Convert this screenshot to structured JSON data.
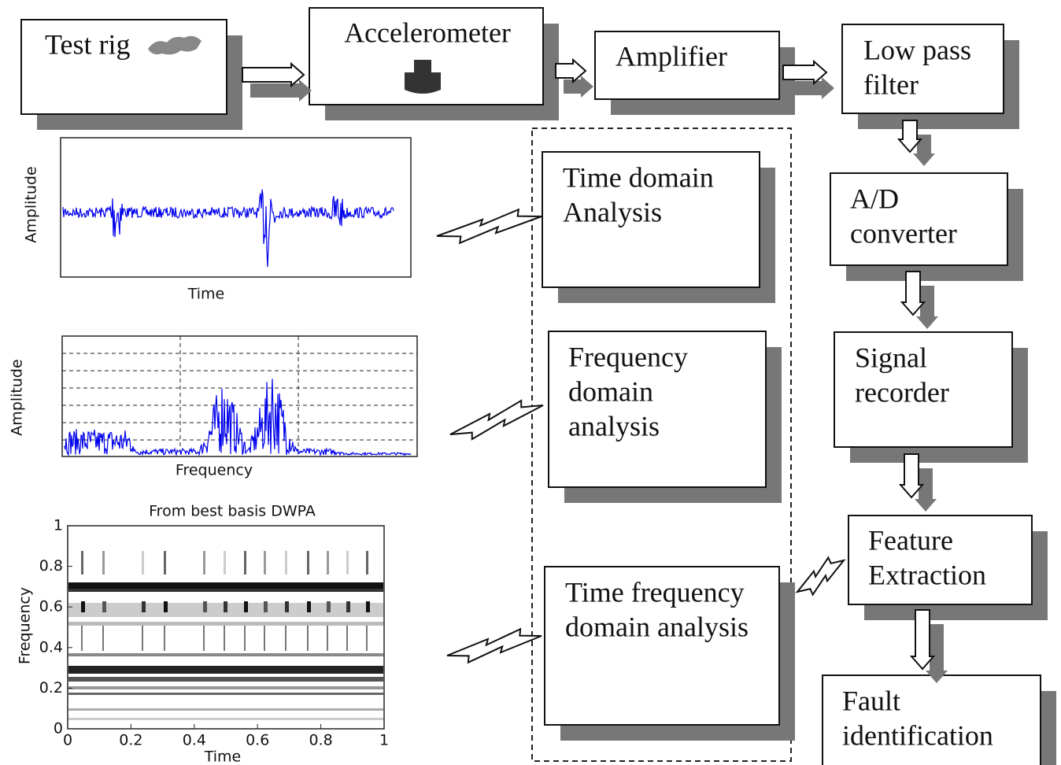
{
  "flow": [
    {
      "lines": [
        "Test rig"
      ]
    },
    {
      "lines": [
        "Accelerometer"
      ]
    },
    {
      "lines": [
        "Amplifier"
      ]
    },
    {
      "lines": [
        "Low pass",
        "filter"
      ]
    },
    {
      "lines": [
        "A/D",
        "converter"
      ]
    },
    {
      "lines": [
        "Signal",
        "recorder"
      ]
    },
    {
      "lines": [
        "Feature",
        "Extraction"
      ]
    },
    {
      "lines": [
        "Fault",
        "identification"
      ]
    }
  ],
  "analysis": [
    {
      "lines": [
        "Time domain",
        "Analysis"
      ]
    },
    {
      "lines": [
        "Frequency",
        "domain",
        "analysis"
      ]
    },
    {
      "lines": [
        "Time frequency",
        "domain analysis"
      ]
    }
  ],
  "plots": [
    {
      "y_label": "Amplitude",
      "x_label": "Time"
    },
    {
      "y_label": "Amplitude",
      "x_label": "Frequency"
    },
    {
      "title": "From best basis DWPA",
      "y_label": "Frequency",
      "x_label": "Time",
      "xticks": [
        "0",
        "0.2",
        "0.4",
        "0.6",
        "0.8",
        "1"
      ],
      "yticks": [
        "0",
        "0.2",
        "0.4",
        "0.6",
        "0.8",
        "1"
      ]
    }
  ]
}
